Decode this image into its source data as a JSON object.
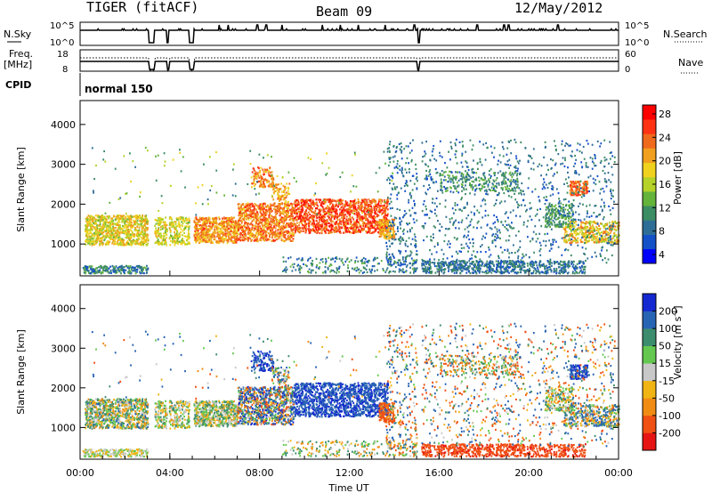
{
  "header": {
    "station": "TIGER (fitACF)",
    "beam": "Beam 09",
    "date": "12/May/2012"
  },
  "chart_data": [
    {
      "type": "line",
      "name_label": "N.Sky",
      "right_label": "N.Search",
      "left_ticks": [
        "10^5",
        "10^0"
      ],
      "right_ticks": [
        "10^5",
        "10^0"
      ],
      "x_ticks": [
        "00:00",
        "04:00",
        "08:00",
        "12:00",
        "16:00",
        "20:00",
        "00:00"
      ],
      "xlim_hours": [
        0,
        24
      ],
      "gaps_hours": [
        [
          3.05,
          3.3
        ],
        [
          3.85,
          3.95
        ],
        [
          4.85,
          5.05
        ],
        [
          15.05,
          15.15
        ]
      ],
      "spikes_hours": [
        6.2,
        6.6,
        7.9,
        8.3,
        9.0,
        10.8,
        11.6,
        12.4,
        13.6,
        14.9,
        17.7,
        18.9,
        19.1,
        21.3
      ]
    },
    {
      "type": "line",
      "label_lines": [
        "Freq.",
        "[MHz]"
      ],
      "right_label": "Nave",
      "left_ticks": [
        "18",
        "8"
      ],
      "right_ticks": [
        "60",
        "0"
      ],
      "xlim_hours": [
        0,
        24
      ],
      "gaps_hours": [
        [
          3.05,
          3.3
        ],
        [
          3.85,
          3.95
        ],
        [
          4.85,
          5.05
        ],
        [
          15.05,
          15.15
        ]
      ]
    },
    {
      "type": "table",
      "label": "CPID",
      "value": "normal 150"
    },
    {
      "type": "heatmap",
      "quantity": "power",
      "ylabel": "Slant Range [km]",
      "y_ticks": [
        1000,
        2000,
        3000,
        4000
      ],
      "ylim": [
        200,
        4600
      ],
      "xlim_hours": [
        0,
        24
      ],
      "colorbar_label": "Power [dB]",
      "colorbar_ticks": [
        "28",
        "24",
        "20",
        "16",
        "12",
        "8",
        "4"
      ],
      "colorbar_colors": [
        "#0000ff",
        "#1450c8",
        "#2e6e96",
        "#3c8c64",
        "#64b43c",
        "#b4d228",
        "#f0d21e",
        "#f0a01e",
        "#f06a1e",
        "#ff3214",
        "#ff0000"
      ]
    },
    {
      "type": "heatmap",
      "quantity": "velocity",
      "ylabel": "Slant Range [km]",
      "xlabel": "Time UT",
      "y_ticks": [
        1000,
        2000,
        3000,
        4000
      ],
      "ylim": [
        200,
        4600
      ],
      "xlim_hours": [
        0,
        24
      ],
      "x_ticks": [
        "00:00",
        "04:00",
        "08:00",
        "12:00",
        "16:00",
        "20:00",
        "00:00"
      ],
      "colorbar_label": "Velocity [m s",
      "colorbar_label_sup": "-1",
      "colorbar_label_end": "]",
      "colorbar_ticks": [
        "200",
        "100",
        "50",
        "15",
        "-15",
        "-50",
        "-100",
        "-200"
      ],
      "colorbar_colors": [
        "#1428d2",
        "#2864b4",
        "#3c8c6e",
        "#64c850",
        "#c8c8c8",
        "#f0b414",
        "#f08c14",
        "#f05014",
        "#e61414"
      ]
    }
  ],
  "clusters": [
    {
      "t": [
        0.2,
        3.0
      ],
      "r": [
        950,
        1700
      ],
      "n": 900,
      "p": [
        14,
        24
      ],
      "v": [
        -80,
        120
      ]
    },
    {
      "t": [
        3.3,
        3.85
      ],
      "r": [
        950,
        1650
      ],
      "n": 120,
      "p": [
        14,
        22
      ],
      "v": [
        -60,
        80
      ]
    },
    {
      "t": [
        3.95,
        4.85
      ],
      "r": [
        950,
        1650
      ],
      "n": 200,
      "p": [
        14,
        22
      ],
      "v": [
        -60,
        80
      ]
    },
    {
      "t": [
        5.05,
        7.0
      ],
      "r": [
        1000,
        1650
      ],
      "n": 600,
      "p": [
        18,
        28
      ],
      "v": [
        -60,
        100
      ]
    },
    {
      "t": [
        7.0,
        9.5
      ],
      "r": [
        1050,
        2000
      ],
      "n": 900,
      "p": [
        20,
        30
      ],
      "v": [
        -150,
        250
      ]
    },
    {
      "t": [
        9.5,
        13.7
      ],
      "r": [
        1250,
        2100
      ],
      "n": 1300,
      "p": [
        22,
        32
      ],
      "v": [
        120,
        260
      ]
    },
    {
      "t": [
        13.3,
        14.0
      ],
      "r": [
        1100,
        1600
      ],
      "n": 150,
      "p": [
        18,
        26
      ],
      "v": [
        -200,
        -50
      ]
    },
    {
      "t": [
        7.6,
        8.6
      ],
      "r": [
        2400,
        2900
      ],
      "n": 120,
      "p": [
        20,
        28
      ],
      "v": [
        150,
        250
      ]
    },
    {
      "t": [
        8.5,
        9.3
      ],
      "r": [
        1900,
        2500
      ],
      "n": 90,
      "p": [
        18,
        26
      ],
      "v": [
        -150,
        200
      ]
    },
    {
      "t": [
        0.1,
        3.0
      ],
      "r": [
        240,
        430
      ],
      "n": 220,
      "p": [
        4,
        14
      ],
      "v": [
        -40,
        40
      ]
    },
    {
      "t": [
        9.0,
        15.0
      ],
      "r": [
        250,
        650
      ],
      "n": 220,
      "p": [
        4,
        14
      ],
      "v": [
        -100,
        100
      ]
    },
    {
      "t": [
        15.2,
        22.5
      ],
      "r": [
        240,
        560
      ],
      "n": 700,
      "p": [
        4,
        12
      ],
      "v": [
        -220,
        -100
      ]
    },
    {
      "t": [
        16.0,
        19.5
      ],
      "r": [
        2300,
        2800
      ],
      "n": 220,
      "p": [
        8,
        14
      ],
      "v": [
        -120,
        100
      ]
    },
    {
      "t": [
        20.7,
        22.0
      ],
      "r": [
        1400,
        2000
      ],
      "n": 200,
      "p": [
        8,
        14
      ],
      "v": [
        -60,
        80
      ]
    },
    {
      "t": [
        21.8,
        22.6
      ],
      "r": [
        2200,
        2550
      ],
      "n": 130,
      "p": [
        22,
        30
      ],
      "v": [
        100,
        250
      ]
    },
    {
      "t": [
        21.5,
        24.0
      ],
      "r": [
        1000,
        1550
      ],
      "n": 400,
      "p": [
        14,
        26
      ],
      "v": [
        -100,
        200
      ]
    },
    {
      "t": [
        13.6,
        15.0
      ],
      "r": [
        250,
        3600
      ],
      "n": 260,
      "p": [
        4,
        12
      ],
      "v": [
        -200,
        200
      ]
    },
    {
      "t": [
        15.2,
        23.8
      ],
      "r": [
        500,
        3600
      ],
      "n": 900,
      "p": [
        4,
        12
      ],
      "v": [
        -200,
        200
      ]
    },
    {
      "t": [
        0.5,
        14.0
      ],
      "r": [
        1700,
        3400
      ],
      "n": 120,
      "p": [
        8,
        20
      ],
      "v": [
        -150,
        200
      ]
    }
  ]
}
